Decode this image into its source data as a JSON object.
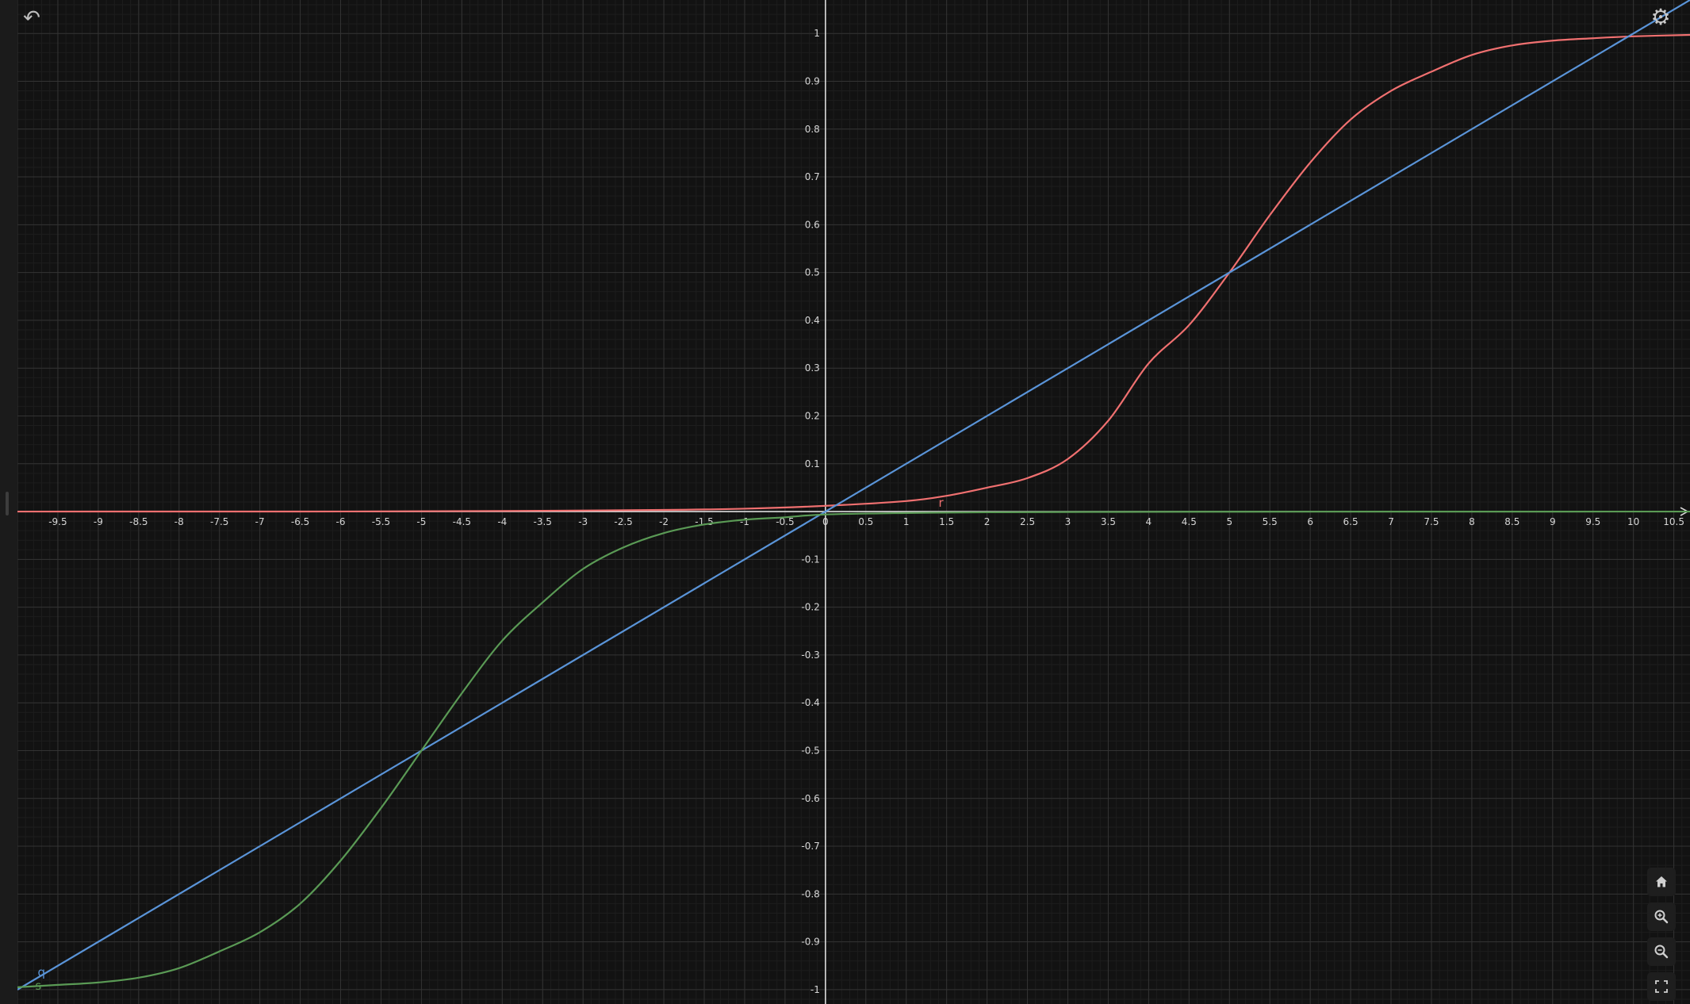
{
  "app": {
    "undo_icon": "undo-icon",
    "settings_icon": "gear-icon",
    "nav": [
      {
        "name": "home-button",
        "icon": "home-icon"
      },
      {
        "name": "zoom-in-button",
        "icon": "zoom-in-icon"
      },
      {
        "name": "zoom-out-button",
        "icon": "zoom-out-icon"
      },
      {
        "name": "fullscreen-button",
        "icon": "fullscreen-icon"
      }
    ]
  },
  "chart_data": {
    "type": "line",
    "title": "",
    "xlabel": "",
    "ylabel": "",
    "xlim": [
      -10.0,
      10.7
    ],
    "ylim": [
      -1.03,
      1.07
    ],
    "grid": true,
    "background": "#121212",
    "x_ticks": [
      "-9.5",
      "-9",
      "-8.5",
      "-8",
      "-7.5",
      "-7",
      "-6.5",
      "-6",
      "-5.5",
      "-5",
      "-4.5",
      "-4",
      "-3.5",
      "-3",
      "-2.5",
      "-2",
      "-1.5",
      "-1",
      "-0.5",
      "0",
      "0.5",
      "1",
      "1.5",
      "2",
      "2.5",
      "3",
      "3.5",
      "4",
      "4.5",
      "5",
      "5.5",
      "6",
      "6.5",
      "7",
      "7.5",
      "8",
      "8.5",
      "9",
      "9.5",
      "10",
      "10.5"
    ],
    "y_ticks": [
      "1",
      "0.9",
      "0.8",
      "0.7",
      "0.6",
      "0.5",
      "0.4",
      "0.3",
      "0.2",
      "0.1",
      "-0.1",
      "-0.2",
      "-0.3",
      "-0.4",
      "-0.5",
      "-0.6",
      "-0.7",
      "-0.8",
      "-0.9",
      "-1"
    ],
    "series": [
      {
        "name": "r",
        "color": "#f07070",
        "x": [
          -10,
          -8,
          -6,
          -4,
          -2,
          -1,
          0,
          1,
          1.5,
          2,
          2.5,
          3,
          3.5,
          4,
          4.5,
          5,
          5.5,
          6,
          6.5,
          7,
          7.5,
          8,
          8.5,
          9,
          9.5,
          10,
          10.7
        ],
        "y": [
          0,
          0.0001,
          0.0002,
          0.0012,
          0.0034,
          0.006,
          0.012,
          0.022,
          0.033,
          0.05,
          0.07,
          0.11,
          0.19,
          0.31,
          0.39,
          0.5,
          0.62,
          0.73,
          0.82,
          0.88,
          0.92,
          0.955,
          0.975,
          0.985,
          0.99,
          0.994,
          0.997
        ]
      },
      {
        "name": "q",
        "color": "#5a94d8",
        "x": [
          -10,
          10.7
        ],
        "y": [
          -1.0,
          1.07
        ]
      },
      {
        "name": "s",
        "color": "#5a9a55",
        "x": [
          -10,
          -9.5,
          -9,
          -8.5,
          -8,
          -7.5,
          -7,
          -6.5,
          -6,
          -5.5,
          -5,
          -4.5,
          -4,
          -3.5,
          -3,
          -2.5,
          -2,
          -1.5,
          -1,
          -0.5,
          0,
          1,
          2,
          4,
          6,
          8,
          10.7
        ],
        "y": [
          -0.995,
          -0.99,
          -0.985,
          -0.975,
          -0.955,
          -0.92,
          -0.88,
          -0.82,
          -0.73,
          -0.62,
          -0.5,
          -0.38,
          -0.27,
          -0.19,
          -0.12,
          -0.075,
          -0.045,
          -0.027,
          -0.017,
          -0.012,
          -0.006,
          -0.003,
          -0.0015,
          -0.0005,
          -0.0002,
          -0.0001,
          0
        ]
      }
    ]
  }
}
